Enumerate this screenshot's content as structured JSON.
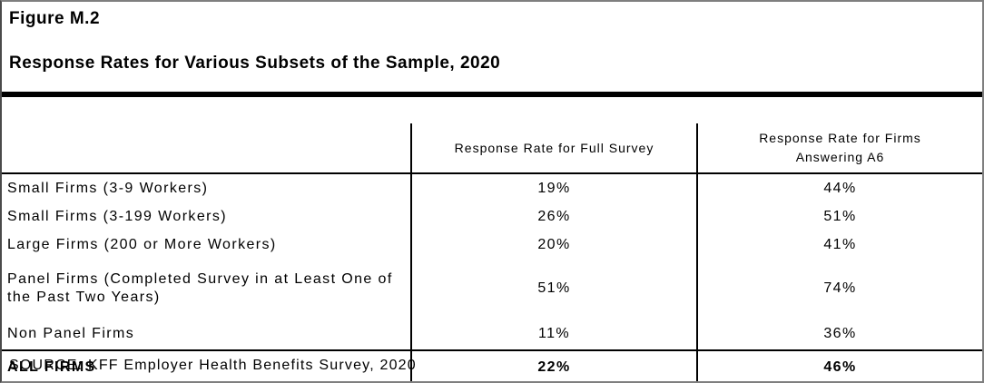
{
  "figure": {
    "label": "Figure M.2",
    "title": "Response Rates for Various Subsets of the Sample, 2020"
  },
  "table": {
    "header": {
      "firm_subset": "",
      "full_survey": "Response Rate for Full Survey",
      "a6_line1": "Response Rate for Firms",
      "a6_line2": "Answering A6"
    },
    "rows": [
      {
        "label": "Small Firms (3-9 Workers)",
        "full_survey": "19%",
        "a6": "44%"
      },
      {
        "label": "Small Firms (3-199 Workers)",
        "full_survey": "26%",
        "a6": "51%"
      },
      {
        "label": "Large Firms (200 or More Workers)",
        "full_survey": "20%",
        "a6": "41%"
      },
      {
        "label": "Panel Firms (Completed Survey in at Least One of the Past Two Years)",
        "full_survey": "51%",
        "a6": "74%"
      },
      {
        "label": "Non Panel Firms",
        "full_survey": "11%",
        "a6": "36%"
      }
    ],
    "total": {
      "label": "ALL FIRMS",
      "full_survey": "22%",
      "a6": "46%"
    }
  },
  "source": "SOURCE: KFF Employer Health Benefits Survey, 2020",
  "colors": {
    "rule": "#000000",
    "table_border": "#000000",
    "frame_border": "#7f7f7f",
    "text": "#000000",
    "background": "#ffffff"
  }
}
